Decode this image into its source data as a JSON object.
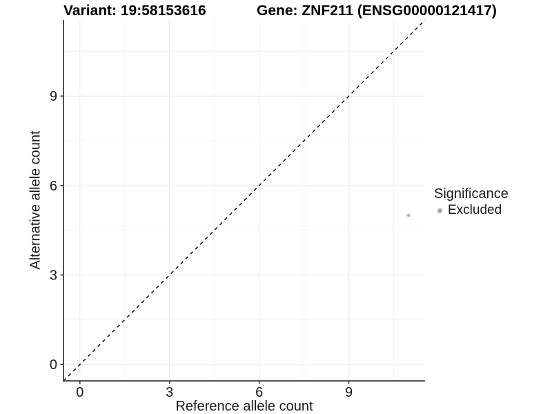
{
  "chart_data": {
    "type": "scatter",
    "titles": {
      "left": "Variant: 19:58153616",
      "right": "Gene: ZNF211 (ENSG00000121417)"
    },
    "xlabel": "Reference allele count",
    "ylabel": "Alternative allele count",
    "axes": {
      "xlim": [
        -0.55,
        11.55
      ],
      "ylim": [
        -0.55,
        11.55
      ],
      "x_major_ticks": [
        0,
        3,
        6,
        9
      ],
      "y_major_ticks": [
        0,
        3,
        6,
        9
      ],
      "x_minor_ticks": [
        1.5,
        4.5,
        7.5,
        10.5
      ],
      "y_minor_ticks": [
        1.5,
        4.5,
        7.5,
        10.5
      ]
    },
    "grid": {
      "major": true,
      "minor": true
    },
    "reference_line": {
      "type": "identity",
      "x1": -0.55,
      "y1": -0.55,
      "x2": 11.55,
      "y2": 11.55,
      "dashed": true,
      "color": "#000000"
    },
    "series": [
      {
        "name": "Excluded",
        "color": "#b4b4b4",
        "point_radius": 2.4,
        "points": [
          {
            "x": 11,
            "y": 5
          }
        ]
      }
    ],
    "legend": {
      "title": "Significance",
      "position": "right",
      "items": [
        {
          "label": "Excluded",
          "color": "#a9a9a9"
        }
      ]
    },
    "colors": {
      "grid_major": "#e9e9e9",
      "grid_minor": "#f4f4f4",
      "axis_line": "#3c3c3c",
      "tick_text": "#1a1a1a"
    }
  }
}
